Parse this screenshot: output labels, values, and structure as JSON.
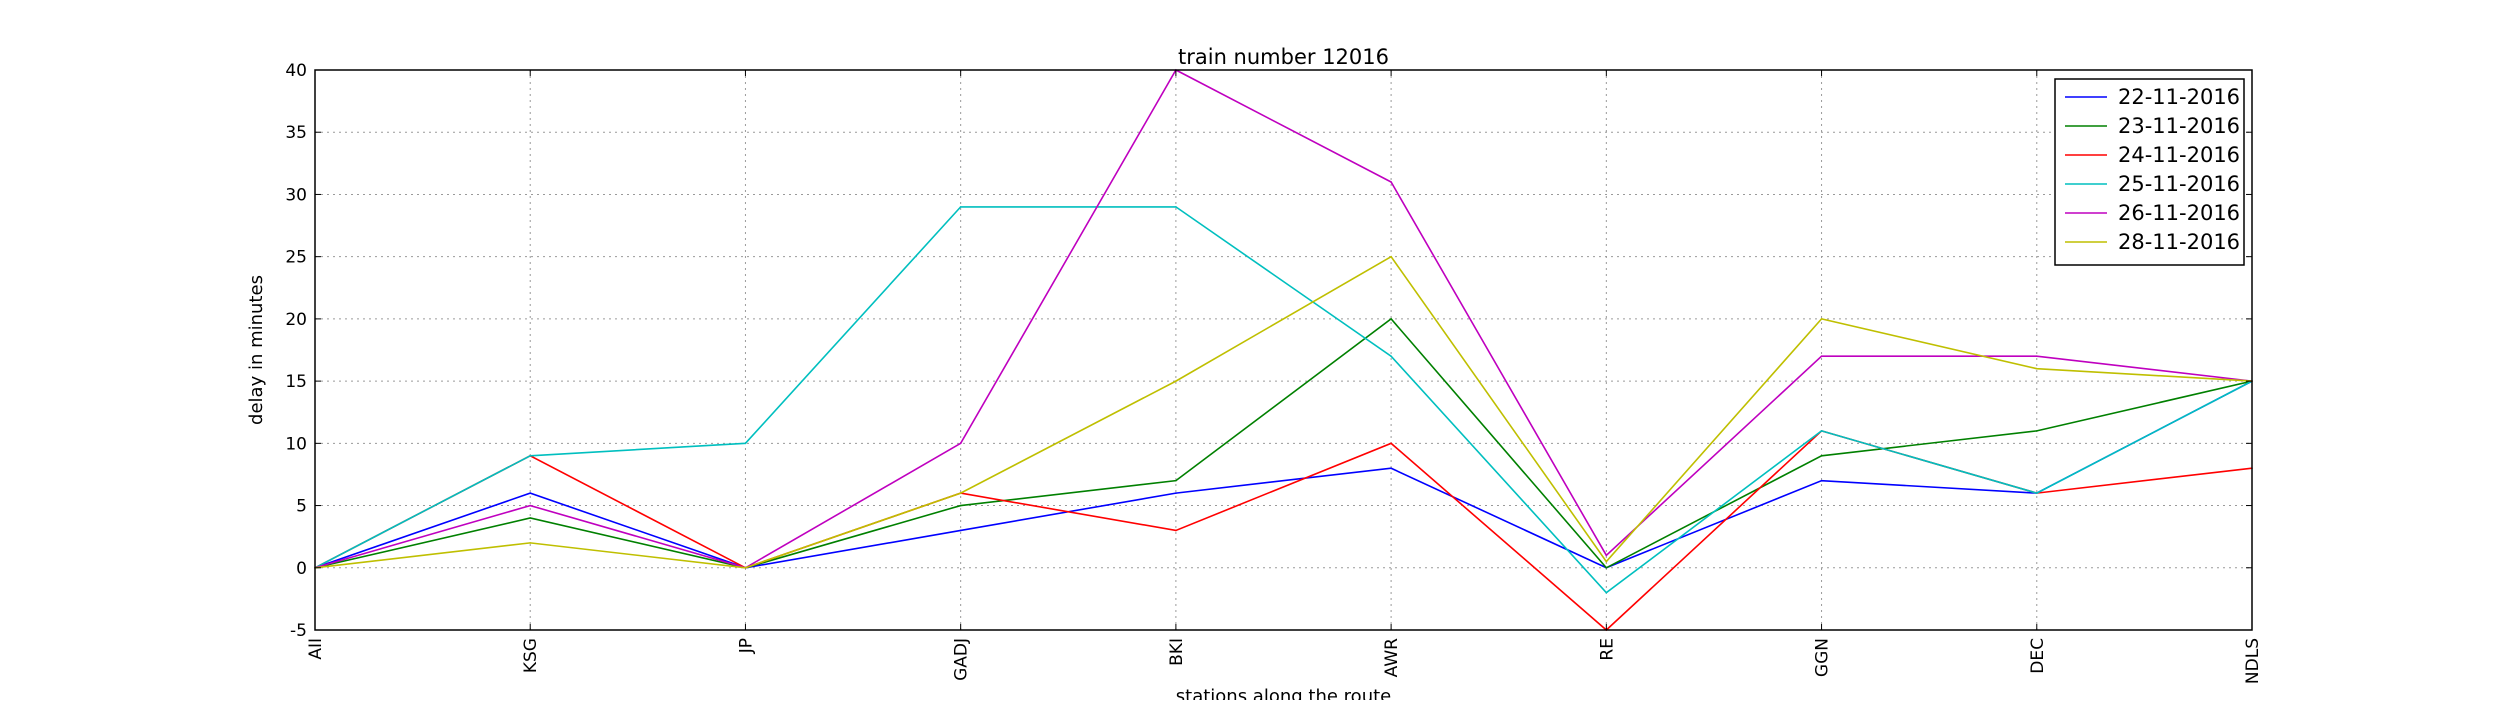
{
  "chart_data": {
    "type": "line",
    "title": "train number 12016",
    "xlabel": "stations along the route",
    "ylabel": "delay in minutes",
    "categories": [
      "AII",
      "KSG",
      "JP",
      "GADJ",
      "BKI",
      "AWR",
      "RE",
      "GGN",
      "DEC",
      "NDLS"
    ],
    "ylim": [
      -5,
      40
    ],
    "yticks": [
      -5,
      0,
      5,
      10,
      15,
      20,
      25,
      30,
      35,
      40
    ],
    "grid": true,
    "legend_position": "top-right",
    "series": [
      {
        "name": "22-11-2016",
        "color": "#0000ff",
        "values": [
          0,
          6,
          0,
          3,
          6,
          8,
          0,
          7,
          6,
          15
        ]
      },
      {
        "name": "23-11-2016",
        "color": "#008000",
        "values": [
          0,
          4,
          0,
          5,
          7,
          20,
          0,
          9,
          11,
          15
        ]
      },
      {
        "name": "24-11-2016",
        "color": "#ff0000",
        "values": [
          0,
          9,
          0,
          6,
          3,
          10,
          -5,
          11,
          6,
          8
        ]
      },
      {
        "name": "25-11-2016",
        "color": "#00bfbf",
        "values": [
          0,
          9,
          10,
          29,
          29,
          17,
          -2,
          11,
          6,
          15
        ]
      },
      {
        "name": "26-11-2016",
        "color": "#bf00bf",
        "values": [
          0,
          5,
          0,
          10,
          40,
          31,
          1,
          17,
          17,
          15
        ]
      },
      {
        "name": "28-11-2016",
        "color": "#bfbf00",
        "values": [
          0,
          2,
          0,
          6,
          15,
          25,
          0.5,
          20,
          16,
          15
        ]
      }
    ]
  }
}
